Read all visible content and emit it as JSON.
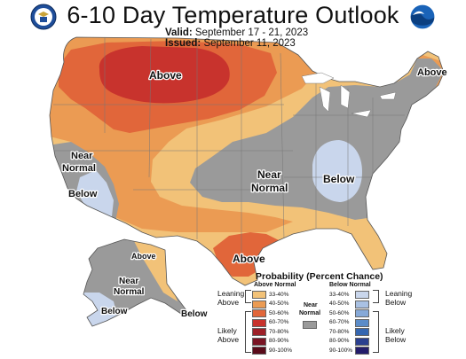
{
  "header": {
    "title": "6-10 Day Temperature Outlook",
    "valid_label": "Valid:",
    "valid_dates": "September 17 - 21, 2023",
    "issued_label": "Issued:",
    "issued_date": "September 11, 2023"
  },
  "logos": {
    "left": "doc-seal-icon",
    "right": "noaa-logo-icon"
  },
  "map_labels": {
    "above_north": "Above",
    "above_ne": "Above",
    "near_normal_west_1": "Near",
    "near_normal_west_2": "Normal",
    "below_west": "Below",
    "near_normal_center_1": "Near",
    "near_normal_center_2": "Normal",
    "below_east": "Below",
    "above_texas": "Above",
    "ak_above": "Above",
    "ak_near_1": "Near",
    "ak_near_2": "Normal",
    "ak_below": "Below",
    "ak_below_se": "Below"
  },
  "legend": {
    "title": "Probability (Percent Chance)",
    "above_header": "Above Normal",
    "below_header": "Below Normal",
    "normal_header_1": "Near",
    "normal_header_2": "Normal",
    "leaning_above_1": "Leaning",
    "leaning_above_2": "Above",
    "likely_above_1": "Likely",
    "likely_above_2": "Above",
    "leaning_below_1": "Leaning",
    "leaning_below_2": "Below",
    "likely_below_1": "Likely",
    "likely_below_2": "Below",
    "ranges": [
      "33-40%",
      "40-50%",
      "50-60%",
      "60-70%",
      "70-80%",
      "80-90%",
      "90-100%"
    ],
    "above_colors": [
      "#f2c278",
      "#eb9b53",
      "#e1663a",
      "#c8332d",
      "#9d2028",
      "#7a1424",
      "#5a0b1a"
    ],
    "below_colors": [
      "#c9d6ec",
      "#a9c1e3",
      "#86a9d8",
      "#5b8cc9",
      "#3566b0",
      "#2a3f8f",
      "#241d6b"
    ],
    "normal_color": "#9a9a9a"
  }
}
